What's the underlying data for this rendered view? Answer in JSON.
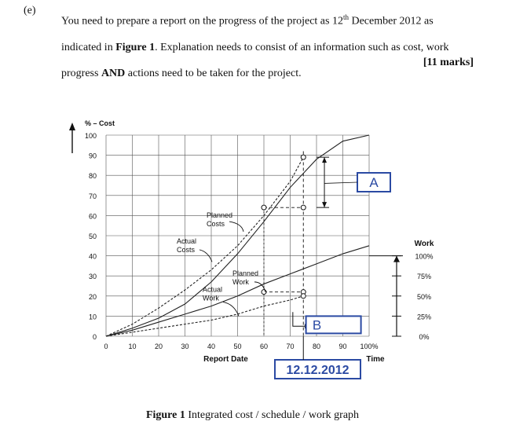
{
  "question": {
    "label": "(e)",
    "text_1": "You need to prepare a report on the progress of the project as 12",
    "sup": "th",
    "text_2": " December 2012 as indicated in ",
    "figure_ref": "Figure 1",
    "text_3": ". Explanation needs to consist of an information such as cost, work progress ",
    "and_word": "AND",
    "text_4": " actions need to be taken for the project.",
    "marks": "[11 marks]"
  },
  "figure": {
    "y_axis_title": "% – Cost",
    "right_axis_title": "Work",
    "x_axis_title": "Report Date",
    "x_axis_right": "Time",
    "annotations": {
      "planned_costs": [
        "Planned",
        "Costs"
      ],
      "actual_costs": [
        "Actual",
        "Costs"
      ],
      "planned_work": [
        "Planned",
        "Work"
      ],
      "actual_work": [
        "Actual",
        "Work"
      ],
      "box_a": "A",
      "box_b": "B",
      "report_date": "12.12.2012"
    },
    "caption_bold": "Figure 1",
    "caption_rest": " Integrated cost / schedule / work graph",
    "colors": {
      "box": "#2b4aa3",
      "line": "#222222"
    }
  },
  "chart_data": {
    "type": "line",
    "title": "Integrated cost / schedule / work graph",
    "xlabel": "Report Date",
    "ylabel": "% – Cost",
    "xlim": [
      0,
      100
    ],
    "ylim": [
      0,
      100
    ],
    "x_ticks": [
      "0",
      "10",
      "20",
      "30",
      "40",
      "50",
      "60",
      "70",
      "80",
      "90",
      "100%"
    ],
    "y_ticks": [
      "0",
      "10",
      "20",
      "30",
      "40",
      "50",
      "60",
      "70",
      "80",
      "90",
      "100"
    ],
    "right_axis_ticks": [
      "0%",
      "25%",
      "50%",
      "75%",
      "100%"
    ],
    "right_axis_tick_values": [
      0,
      10,
      20,
      30,
      40
    ],
    "grid": true,
    "series": [
      {
        "name": "Planned Costs",
        "style": "solid",
        "x": [
          0,
          10,
          20,
          30,
          40,
          50,
          60,
          70,
          80,
          90,
          100
        ],
        "y": [
          0,
          4,
          9,
          16,
          27,
          41,
          57,
          74,
          88,
          97,
          100
        ]
      },
      {
        "name": "Actual Costs",
        "style": "dashed",
        "x": [
          0,
          10,
          20,
          30,
          40,
          50,
          60,
          70,
          75
        ],
        "y": [
          0,
          6,
          14,
          23,
          33,
          45,
          60,
          77,
          89
        ]
      },
      {
        "name": "Planned Work",
        "style": "solid",
        "x": [
          0,
          10,
          20,
          30,
          40,
          50,
          60,
          70,
          80,
          90,
          100
        ],
        "y": [
          0,
          3,
          7,
          11,
          15,
          20,
          26,
          31,
          36,
          41,
          45
        ]
      },
      {
        "name": "Actual Work",
        "style": "dashed",
        "x": [
          0,
          10,
          20,
          30,
          40,
          50,
          60,
          70,
          75
        ],
        "y": [
          0,
          2,
          4,
          6,
          8,
          11,
          15,
          18,
          20
        ]
      }
    ],
    "markers": [
      {
        "x": 75,
        "y": 89
      },
      {
        "x": 75,
        "y": 64
      },
      {
        "x": 60,
        "y": 64
      },
      {
        "x": 75,
        "y": 22
      },
      {
        "x": 60,
        "y": 22
      },
      {
        "x": 75,
        "y": 20
      }
    ],
    "report_date_x": 75
  }
}
